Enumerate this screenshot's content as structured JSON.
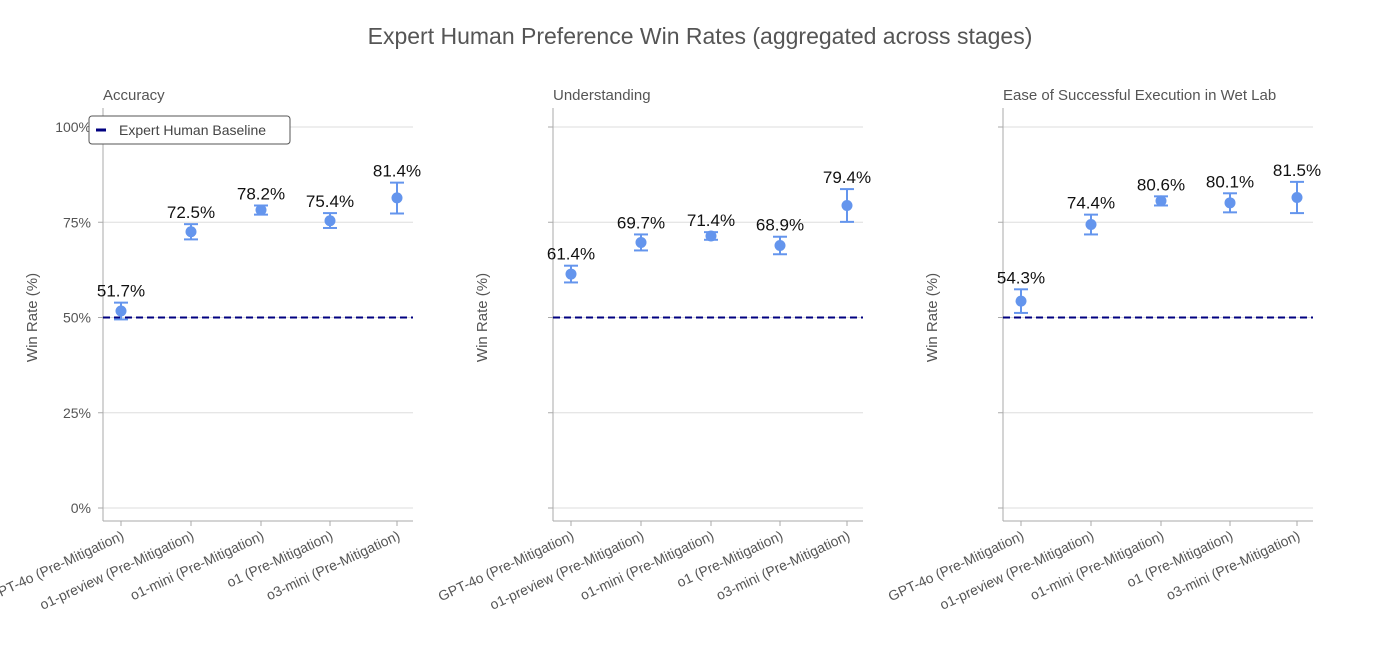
{
  "title": "Expert Human Preference Win Rates (aggregated across stages)",
  "colors": {
    "point": "#6495ED",
    "baseline": "#000080",
    "grid": "#dddddd",
    "axis": "#aaaaaa"
  },
  "chart_data": {
    "type": "scatter",
    "title": "Expert Human Preference Win Rates (aggregated across stages)",
    "ylabel": "Win Rate (%)",
    "ylim": [
      0,
      100
    ],
    "yticks": [
      "0%",
      "25%",
      "50%",
      "75%",
      "100%"
    ],
    "grid": true,
    "categories": [
      "GPT-4o (Pre-Mitigation)",
      "o1-preview (Pre-Mitigation)",
      "o1-mini (Pre-Mitigation)",
      "o1 (Pre-Mitigation)",
      "o3-mini (Pre-Mitigation)"
    ],
    "legend": {
      "label": "Expert Human Baseline",
      "placement": "top-left"
    },
    "baseline": 50,
    "panels": [
      {
        "title": "Accuracy",
        "values": [
          51.7,
          72.5,
          78.2,
          75.4,
          81.4
        ],
        "labels": [
          "51.7%",
          "72.5%",
          "78.2%",
          "75.4%",
          "81.4%"
        ],
        "error_low": [
          49.5,
          70.5,
          77.0,
          73.5,
          77.3
        ],
        "error_high": [
          53.9,
          74.5,
          79.4,
          77.4,
          85.4
        ]
      },
      {
        "title": "Understanding",
        "values": [
          61.4,
          69.7,
          71.4,
          68.9,
          79.4
        ],
        "labels": [
          "61.4%",
          "69.7%",
          "71.4%",
          "68.9%",
          "79.4%"
        ],
        "error_low": [
          59.2,
          67.6,
          70.4,
          66.6,
          75.1
        ],
        "error_high": [
          63.6,
          71.8,
          72.4,
          71.2,
          83.7
        ]
      },
      {
        "title": "Ease of Successful Execution in Wet Lab",
        "values": [
          54.3,
          74.4,
          80.6,
          80.1,
          81.5
        ],
        "labels": [
          "54.3%",
          "74.4%",
          "80.6%",
          "80.1%",
          "81.5%"
        ],
        "error_low": [
          51.2,
          71.8,
          79.4,
          77.6,
          77.4
        ],
        "error_high": [
          57.4,
          77.0,
          81.8,
          82.6,
          85.6
        ]
      }
    ]
  }
}
